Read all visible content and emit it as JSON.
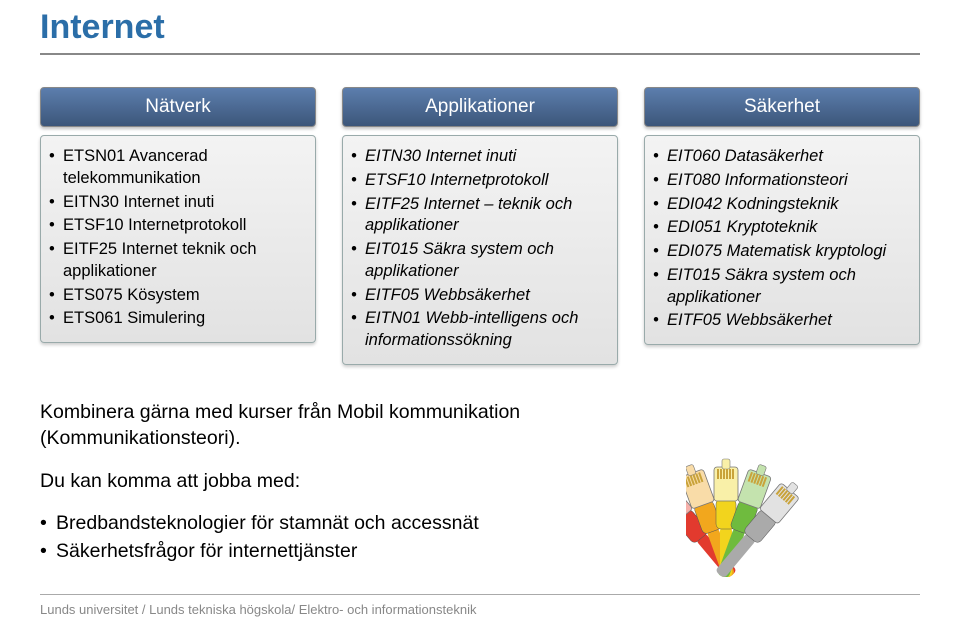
{
  "title": "Internet",
  "columns": [
    {
      "header": "Nätverk",
      "italic": false,
      "items": [
        {
          "text": "ETSN01 Avancerad telekommunikation"
        },
        {
          "text": "EITN30 Internet inuti"
        },
        {
          "text": "ETSF10 Internetprotokoll"
        },
        {
          "text": "EITF25 Internet teknik och applikationer"
        },
        {
          "text": "ETS075 Kösystem"
        },
        {
          "text": "ETS061 Simulering"
        }
      ]
    },
    {
      "header": "Applikationer",
      "italic": true,
      "items": [
        {
          "text": "EITN30 Internet inuti"
        },
        {
          "text": "ETSF10 Internetprotokoll"
        },
        {
          "text": "EITF25 Internet – teknik och applikationer"
        },
        {
          "text": "EIT015 Säkra system och applikationer"
        },
        {
          "text": "EITF05 Webbsäkerhet"
        },
        {
          "text": "EITN01 Webb-intelligens och informationssökning"
        }
      ]
    },
    {
      "header": "Säkerhet",
      "italic": true,
      "items": [
        {
          "text": "EIT060 Datasäkerhet"
        },
        {
          "text": "EIT080 Informationsteori"
        },
        {
          "text": "EDI042 Kodningsteknik"
        },
        {
          "text": "EDI051 Kryptoteknik"
        },
        {
          "text": "EDI075 Matematisk kryptologi"
        },
        {
          "text": "EIT015 Säkra system och applikationer"
        },
        {
          "text": "EITF05 Webbsäkerhet"
        }
      ]
    }
  ],
  "body_para1": "Kombinera gärna med kurser från Mobil kommunikation (Kommunikationsteori).",
  "body_para2": "Du kan komma att jobba med:",
  "body_bullets": [
    "Bredbandsteknologier för stamnät och accessnät",
    "Säkerhetsfrågor för internettjänster"
  ],
  "footer": "Lunds universitet / Lunds tekniska högskola/ Elektro- och informationsteknik",
  "cables": [
    {
      "color": "#e23a2e",
      "plug": "#f5b0aa"
    },
    {
      "color": "#f2a71d",
      "plug": "#f9dca8"
    },
    {
      "color": "#f2d41d",
      "plug": "#f9f0a8"
    },
    {
      "color": "#6fbb3e",
      "plug": "#c4e3ae"
    },
    {
      "color": "#aaaaaa",
      "plug": "#e2e2e2"
    }
  ]
}
